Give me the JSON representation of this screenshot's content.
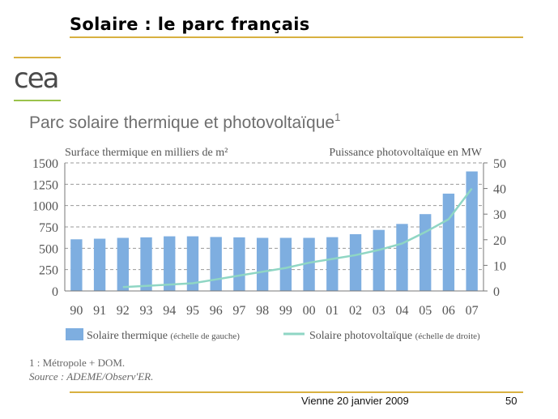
{
  "slide": {
    "title": "Solaire : le parc français",
    "logo_text": "cea",
    "chart_heading": "Parc solaire thermique et photovoltaïque",
    "chart_heading_sup": "1",
    "footnote_1": "1 : Métropole + DOM.",
    "footnote_2": "Source : ADEME/Observ'ER.",
    "footer_venue": "Vienne   20 janvier 2009",
    "footer_page": "50"
  },
  "colors": {
    "bar": "#7eaee0",
    "line": "#8fd6c4",
    "grid": "#9a9a9a",
    "axis_text": "#555555",
    "chart_bg": "#ffffff"
  },
  "chart_data": {
    "type": "bar",
    "categories": [
      "90",
      "91",
      "92",
      "93",
      "94",
      "95",
      "96",
      "97",
      "98",
      "99",
      "00",
      "01",
      "02",
      "03",
      "04",
      "05",
      "06",
      "07"
    ],
    "series": [
      {
        "name": "Solaire thermique",
        "name_note": "(échelle de gauche)",
        "type": "bar",
        "axis": "left",
        "values": [
          605,
          612,
          622,
          628,
          640,
          640,
          632,
          628,
          622,
          622,
          622,
          630,
          665,
          715,
          785,
          900,
          1140,
          1400
        ]
      },
      {
        "name": "Solaire photovoltaïque",
        "name_note": "(échelle de droite)",
        "type": "line",
        "axis": "right",
        "values": [
          null,
          null,
          1.5,
          2,
          2.5,
          3,
          4.5,
          6,
          7.5,
          9,
          11,
          12.5,
          14,
          16,
          18.5,
          23,
          28,
          40
        ]
      }
    ],
    "ylabel_left": "Surface thermique en milliers de m²",
    "ylabel_right": "Puissance photovoltaïque en MW",
    "ylim_left": [
      0,
      1500
    ],
    "ylim_right": [
      0,
      50
    ],
    "yticks_left": [
      "0",
      "250",
      "500",
      "750",
      "1000",
      "1250",
      "1500"
    ],
    "yticks_right": [
      "0",
      "10",
      "20",
      "30",
      "40",
      "50"
    ],
    "grid": true,
    "legend_placement": "bottom"
  }
}
